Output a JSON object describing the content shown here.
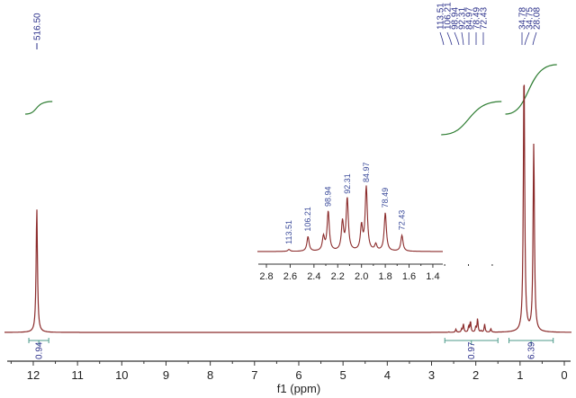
{
  "chart_data": {
    "type": "line",
    "xlabel": "f1 (ppm)",
    "xlim": [
      12.2,
      -0.05
    ],
    "x_ticks": [
      "12",
      "11",
      "10",
      "9",
      "8",
      "7",
      "6",
      "5",
      "4",
      "3",
      "2",
      "1",
      "0"
    ],
    "line_color": "#8b2b2b",
    "integral_color": "#2e7d32",
    "integral_label_color": "#3a4a9a",
    "grid": false,
    "peaks": [
      {
        "ppm": 11.92,
        "intensity": 0.47
      },
      {
        "ppm": 0.91,
        "intensity": 1.0
      },
      {
        "ppm": 0.69,
        "intensity": 0.71
      }
    ],
    "peak_labels": [
      {
        "group": "a",
        "text": "516.50"
      },
      {
        "group": "b",
        "text": "113.51"
      },
      {
        "group": "b",
        "text": "106.21"
      },
      {
        "group": "b",
        "text": "98.94"
      },
      {
        "group": "b",
        "text": "92.31"
      },
      {
        "group": "b",
        "text": "84.97"
      },
      {
        "group": "b",
        "text": "78.49"
      },
      {
        "group": "b",
        "text": "72.43"
      },
      {
        "group": "c",
        "text": "34.78"
      },
      {
        "group": "c",
        "text": "34.75"
      },
      {
        "group": "c",
        "text": "28.08"
      }
    ],
    "integrals": [
      {
        "from": 12.1,
        "to": 11.65,
        "value": "0.94"
      },
      {
        "from": 2.7,
        "to": 1.5,
        "value": "0.97"
      },
      {
        "from": 1.25,
        "to": 0.25,
        "value": "6.39"
      }
    ],
    "inset": {
      "xlim": [
        2.8,
        1.3
      ],
      "x_ticks": [
        "2.8",
        "2.6",
        "2.4",
        "2.2",
        "2.0",
        "1.8",
        "1.6",
        "1.4"
      ],
      "peaks": [
        {
          "ppm": 2.61,
          "intensity": 0.03,
          "label": "113.51"
        },
        {
          "ppm": 2.45,
          "intensity": 0.23,
          "label": "106.21"
        },
        {
          "ppm": 2.32,
          "intensity": 0.22,
          "label": ""
        },
        {
          "ppm": 2.28,
          "intensity": 0.62,
          "label": "98.94"
        },
        {
          "ppm": 2.16,
          "intensity": 0.45,
          "label": ""
        },
        {
          "ppm": 2.12,
          "intensity": 0.82,
          "label": "92.31"
        },
        {
          "ppm": 2.0,
          "intensity": 0.38,
          "label": ""
        },
        {
          "ppm": 1.96,
          "intensity": 1.0,
          "label": "84.97"
        },
        {
          "ppm": 1.88,
          "intensity": 0.1,
          "label": ""
        },
        {
          "ppm": 1.8,
          "intensity": 0.6,
          "label": "78.49"
        },
        {
          "ppm": 1.66,
          "intensity": 0.25,
          "label": "72.43"
        }
      ]
    }
  }
}
